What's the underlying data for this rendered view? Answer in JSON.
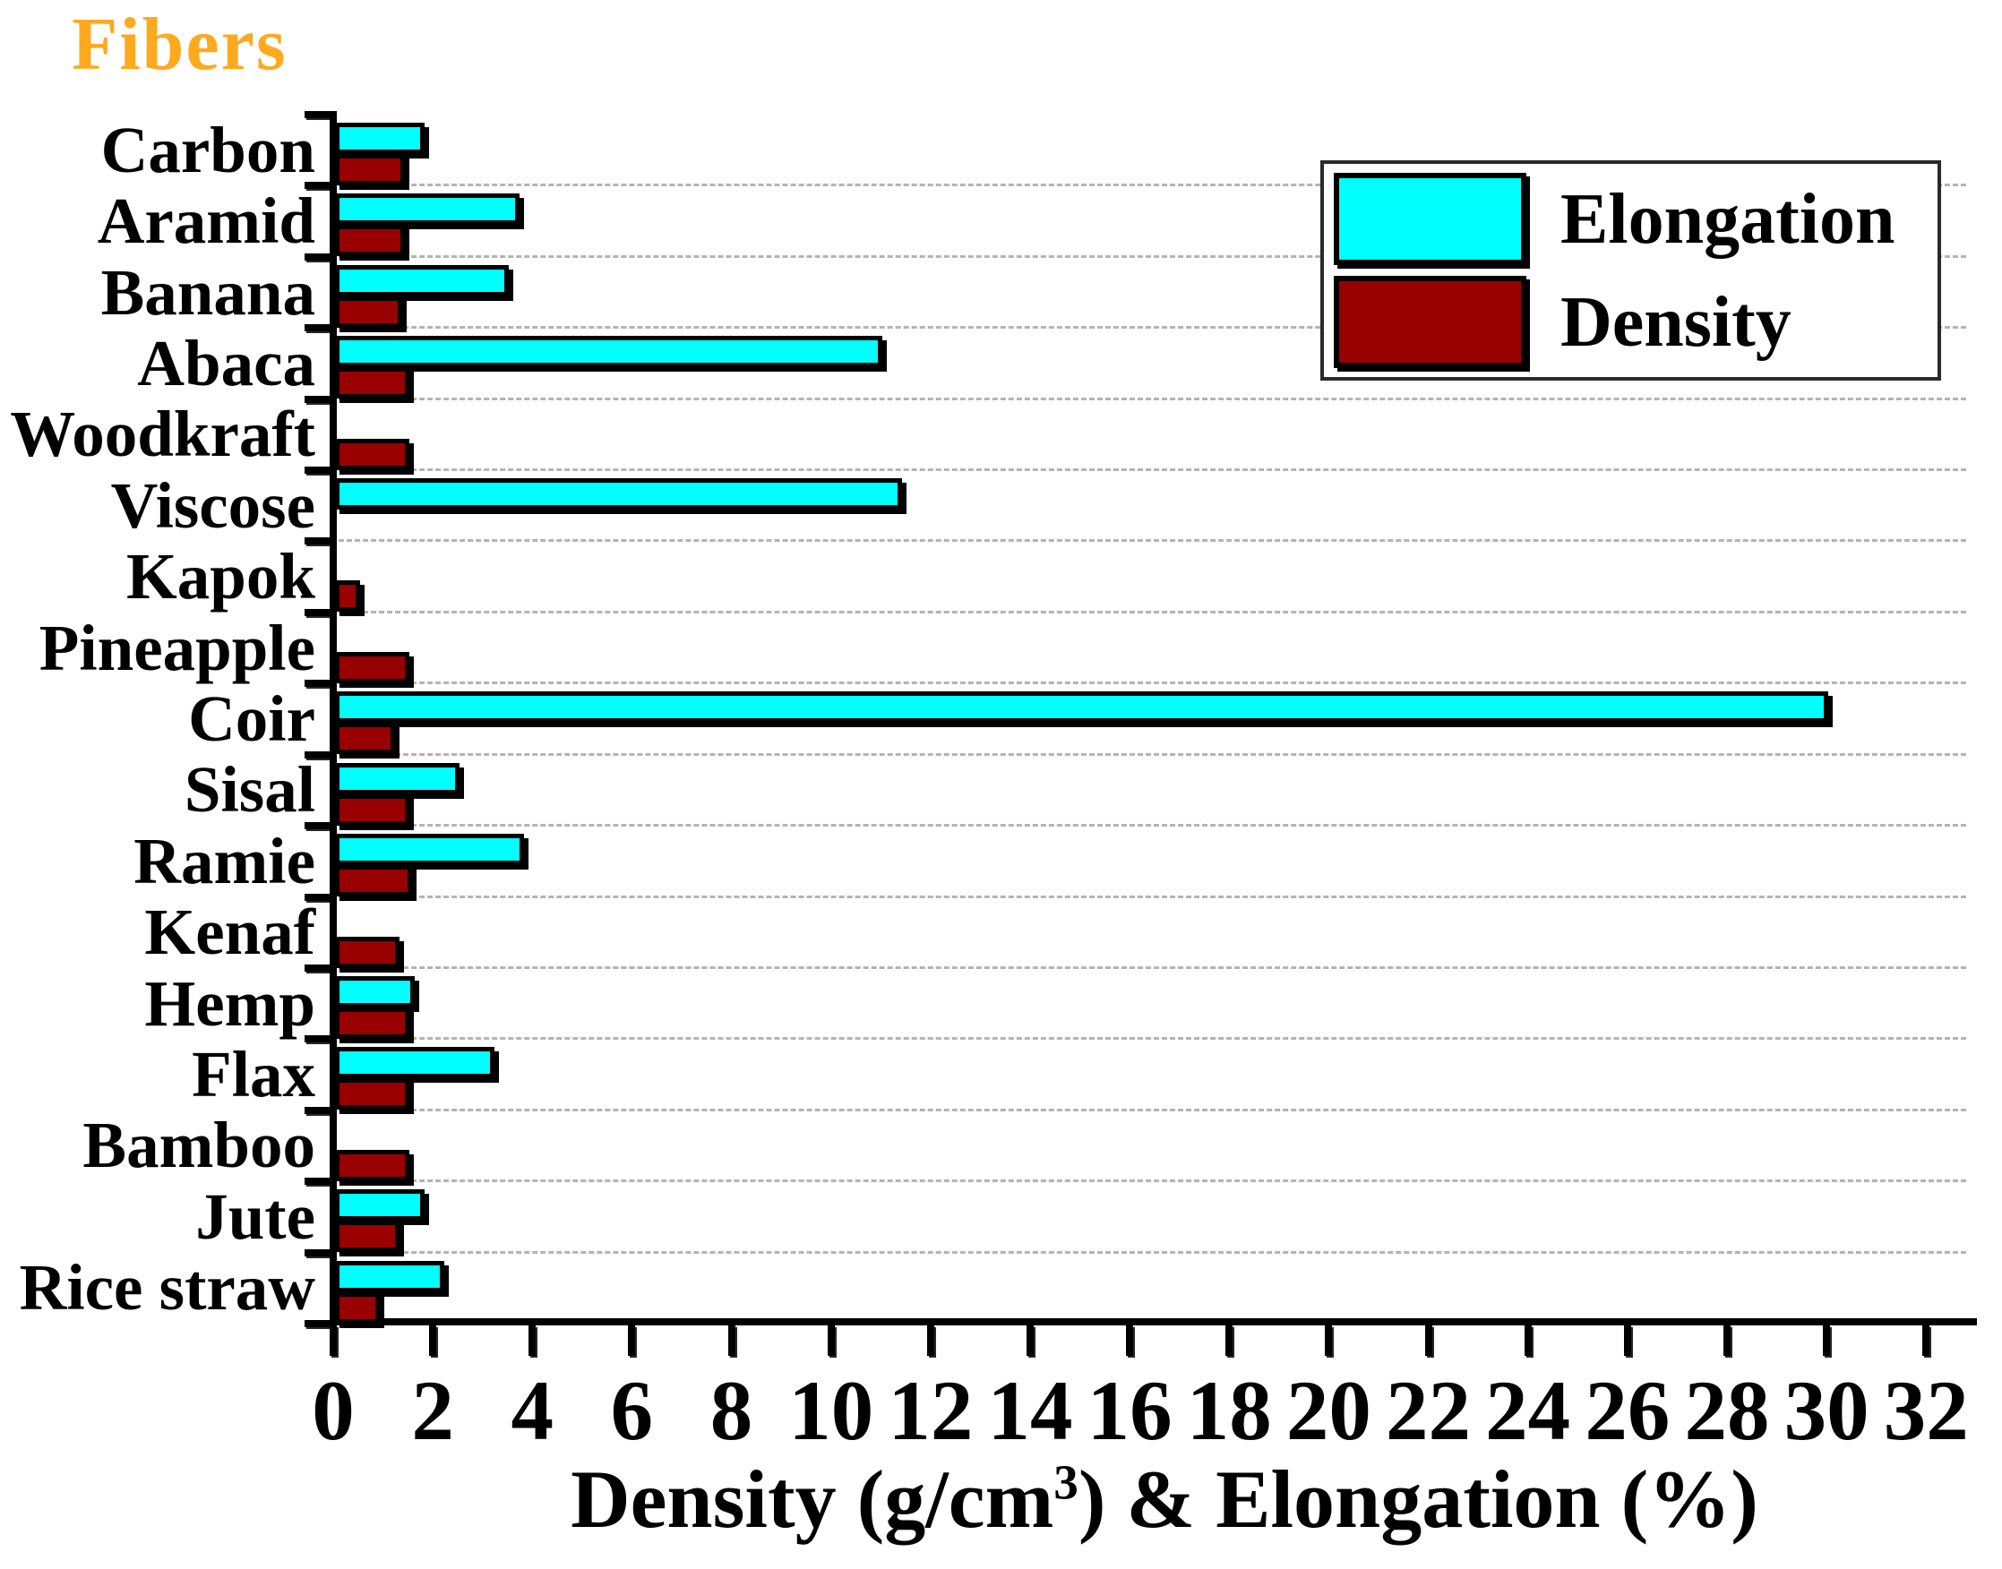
{
  "chart_data": {
    "type": "bar",
    "orientation": "horizontal",
    "ylabel": "Fibers",
    "ylabel_color": "#FFA91F",
    "xlabel": "Density (g/cm³) & Elongation (%)",
    "xlabel_parts": {
      "prefix": "Density (g/cm",
      "sup": "3",
      "suffix": ") & Elongation (%)"
    },
    "categories": [
      "Carbon",
      "Aramid",
      "Banana",
      "Abaca",
      "Woodkraft",
      "Viscose",
      "Kapok",
      "Pineapple",
      "Coir",
      "Sisal",
      "Ramie",
      "Kenaf",
      "Hemp",
      "Flax",
      "Bamboo",
      "Jute",
      "Rice straw"
    ],
    "series": [
      {
        "name": "Elongation",
        "color": "#00FFFF",
        "values": [
          1.8,
          3.7,
          3.5,
          11,
          0,
          11.4,
          0,
          0,
          30,
          2.5,
          3.8,
          0,
          1.6,
          3.2,
          0,
          1.8,
          2.2
        ]
      },
      {
        "name": "Density",
        "color": "#990000",
        "values": [
          1.4,
          1.4,
          1.35,
          1.5,
          1.5,
          0,
          0.5,
          1.5,
          1.2,
          1.5,
          1.55,
          1.3,
          1.5,
          1.5,
          1.5,
          1.3,
          0.9
        ]
      }
    ],
    "xlim": [
      0,
      32
    ],
    "xticks": [
      0,
      2,
      4,
      6,
      8,
      10,
      12,
      14,
      16,
      18,
      20,
      22,
      24,
      26,
      28,
      30,
      32
    ],
    "grid": {
      "orientation": "horizontal",
      "style": "dashed",
      "color": "#b4b4b4"
    },
    "axis_color": "#000000",
    "background": "#FFFFFF",
    "legend": {
      "position": "top-right",
      "entries": [
        "Elongation",
        "Density"
      ]
    }
  }
}
